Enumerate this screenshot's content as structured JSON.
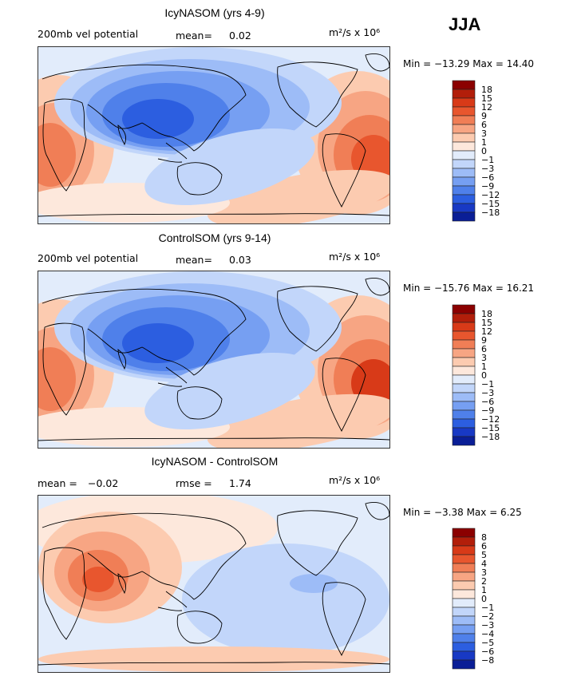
{
  "season_label": "JJA",
  "chart_data": [
    {
      "type": "heatmap",
      "title": "IcyNASOM (yrs 4-9)",
      "field_label": "200mb vel potential",
      "stat_label": "mean=",
      "stat_value": "0.02",
      "units_text": "m²/s x 10⁶",
      "min_max_text": "Min = −13.29 Max =  14.40",
      "min": -13.29,
      "max": 14.4,
      "levels": [
        "18",
        "15",
        "12",
        "9",
        "6",
        "3",
        "1",
        "0",
        "−1",
        "−3",
        "−6",
        "−9",
        "−12",
        "−15",
        "−18"
      ],
      "colors": [
        "#8b0000",
        "#b21e0a",
        "#d83a18",
        "#e8562e",
        "#f07e56",
        "#f7a583",
        "#fccbb0",
        "#fde8dc",
        "#e2ecfb",
        "#c2d6fa",
        "#9dbcf7",
        "#769ff2",
        "#4f80ea",
        "#2c5ee0",
        "#1839c4",
        "#0a1e96"
      ]
    },
    {
      "type": "heatmap",
      "title": "ControlSOM (yrs 9-14)",
      "field_label": "200mb vel potential",
      "stat_label": "mean=",
      "stat_value": "0.03",
      "units_text": "m²/s x 10⁶",
      "min_max_text": "Min = −15.76 Max =  16.21",
      "min": -15.76,
      "max": 16.21,
      "levels": [
        "18",
        "15",
        "12",
        "9",
        "6",
        "3",
        "1",
        "0",
        "−1",
        "−3",
        "−6",
        "−9",
        "−12",
        "−15",
        "−18"
      ],
      "colors": [
        "#8b0000",
        "#b21e0a",
        "#d83a18",
        "#e8562e",
        "#f07e56",
        "#f7a583",
        "#fccbb0",
        "#fde8dc",
        "#e2ecfb",
        "#c2d6fa",
        "#9dbcf7",
        "#769ff2",
        "#4f80ea",
        "#2c5ee0",
        "#1839c4",
        "#0a1e96"
      ]
    },
    {
      "type": "heatmap",
      "title": "IcyNASOM - ControlSOM",
      "stat_label": "mean =",
      "stat_value": "−0.02",
      "stat2_label": "rmse =",
      "stat2_value": "1.74",
      "units_text": "m²/s x 10⁶",
      "min_max_text": "Min = −3.38 Max =   6.25",
      "min": -3.38,
      "max": 6.25,
      "levels": [
        "8",
        "6",
        "5",
        "4",
        "3",
        "2",
        "1",
        "0",
        "−1",
        "−2",
        "−3",
        "−4",
        "−5",
        "−6",
        "−8"
      ],
      "colors": [
        "#8b0000",
        "#b21e0a",
        "#d83a18",
        "#e8562e",
        "#f07e56",
        "#f7a583",
        "#fccbb0",
        "#fde8dc",
        "#e2ecfb",
        "#c2d6fa",
        "#9dbcf7",
        "#769ff2",
        "#4f80ea",
        "#2c5ee0",
        "#1839c4",
        "#0a1e96"
      ]
    }
  ]
}
